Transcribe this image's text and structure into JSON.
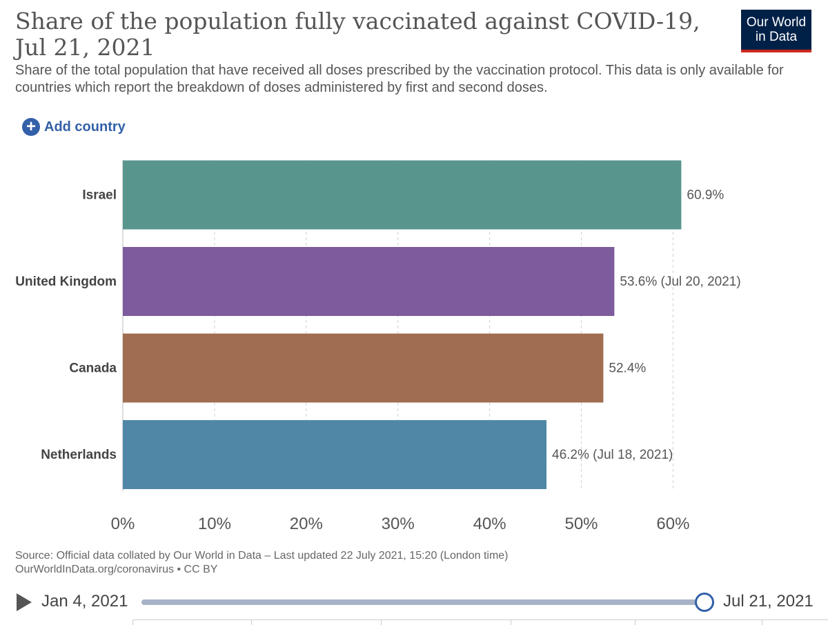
{
  "header": {
    "title": "Share of the population fully vaccinated against COVID-19, Jul 21, 2021",
    "subtitle": "Share of the total population that have received all doses prescribed by the vaccination protocol. This data is only available for countries which report the breakdown of doses administered by first and second doses.",
    "logo_line1": "Our World",
    "logo_line2": "in Data"
  },
  "controls": {
    "add_country_label": "Add country",
    "add_country_icon": "plus-circle-icon"
  },
  "chart_data": {
    "type": "bar",
    "orientation": "horizontal",
    "categories": [
      "Israel",
      "United Kingdom",
      "Canada",
      "Netherlands"
    ],
    "values": [
      60.9,
      53.6,
      52.4,
      46.2
    ],
    "value_labels": [
      "60.9%",
      "53.6% (Jul 20, 2021)",
      "52.4%",
      "46.2% (Jul 18, 2021)"
    ],
    "colors": [
      "#58958d",
      "#7d5b9c",
      "#a06d51",
      "#5087a7"
    ],
    "xlim": [
      0,
      62
    ],
    "xticks": [
      0,
      10,
      20,
      30,
      40,
      50,
      60
    ],
    "xtick_labels": [
      "0%",
      "10%",
      "20%",
      "30%",
      "40%",
      "50%",
      "60%"
    ],
    "grid": true
  },
  "footer": {
    "source_line1": "Source: Official data collated by Our World in Data – Last updated 22 July 2021, 15:20 (London time)",
    "source_line2": "OurWorldInData.org/coronavirus • CC BY"
  },
  "timeline": {
    "start_date": "Jan 4, 2021",
    "end_date": "Jul 21, 2021",
    "play_icon": "play-icon"
  }
}
